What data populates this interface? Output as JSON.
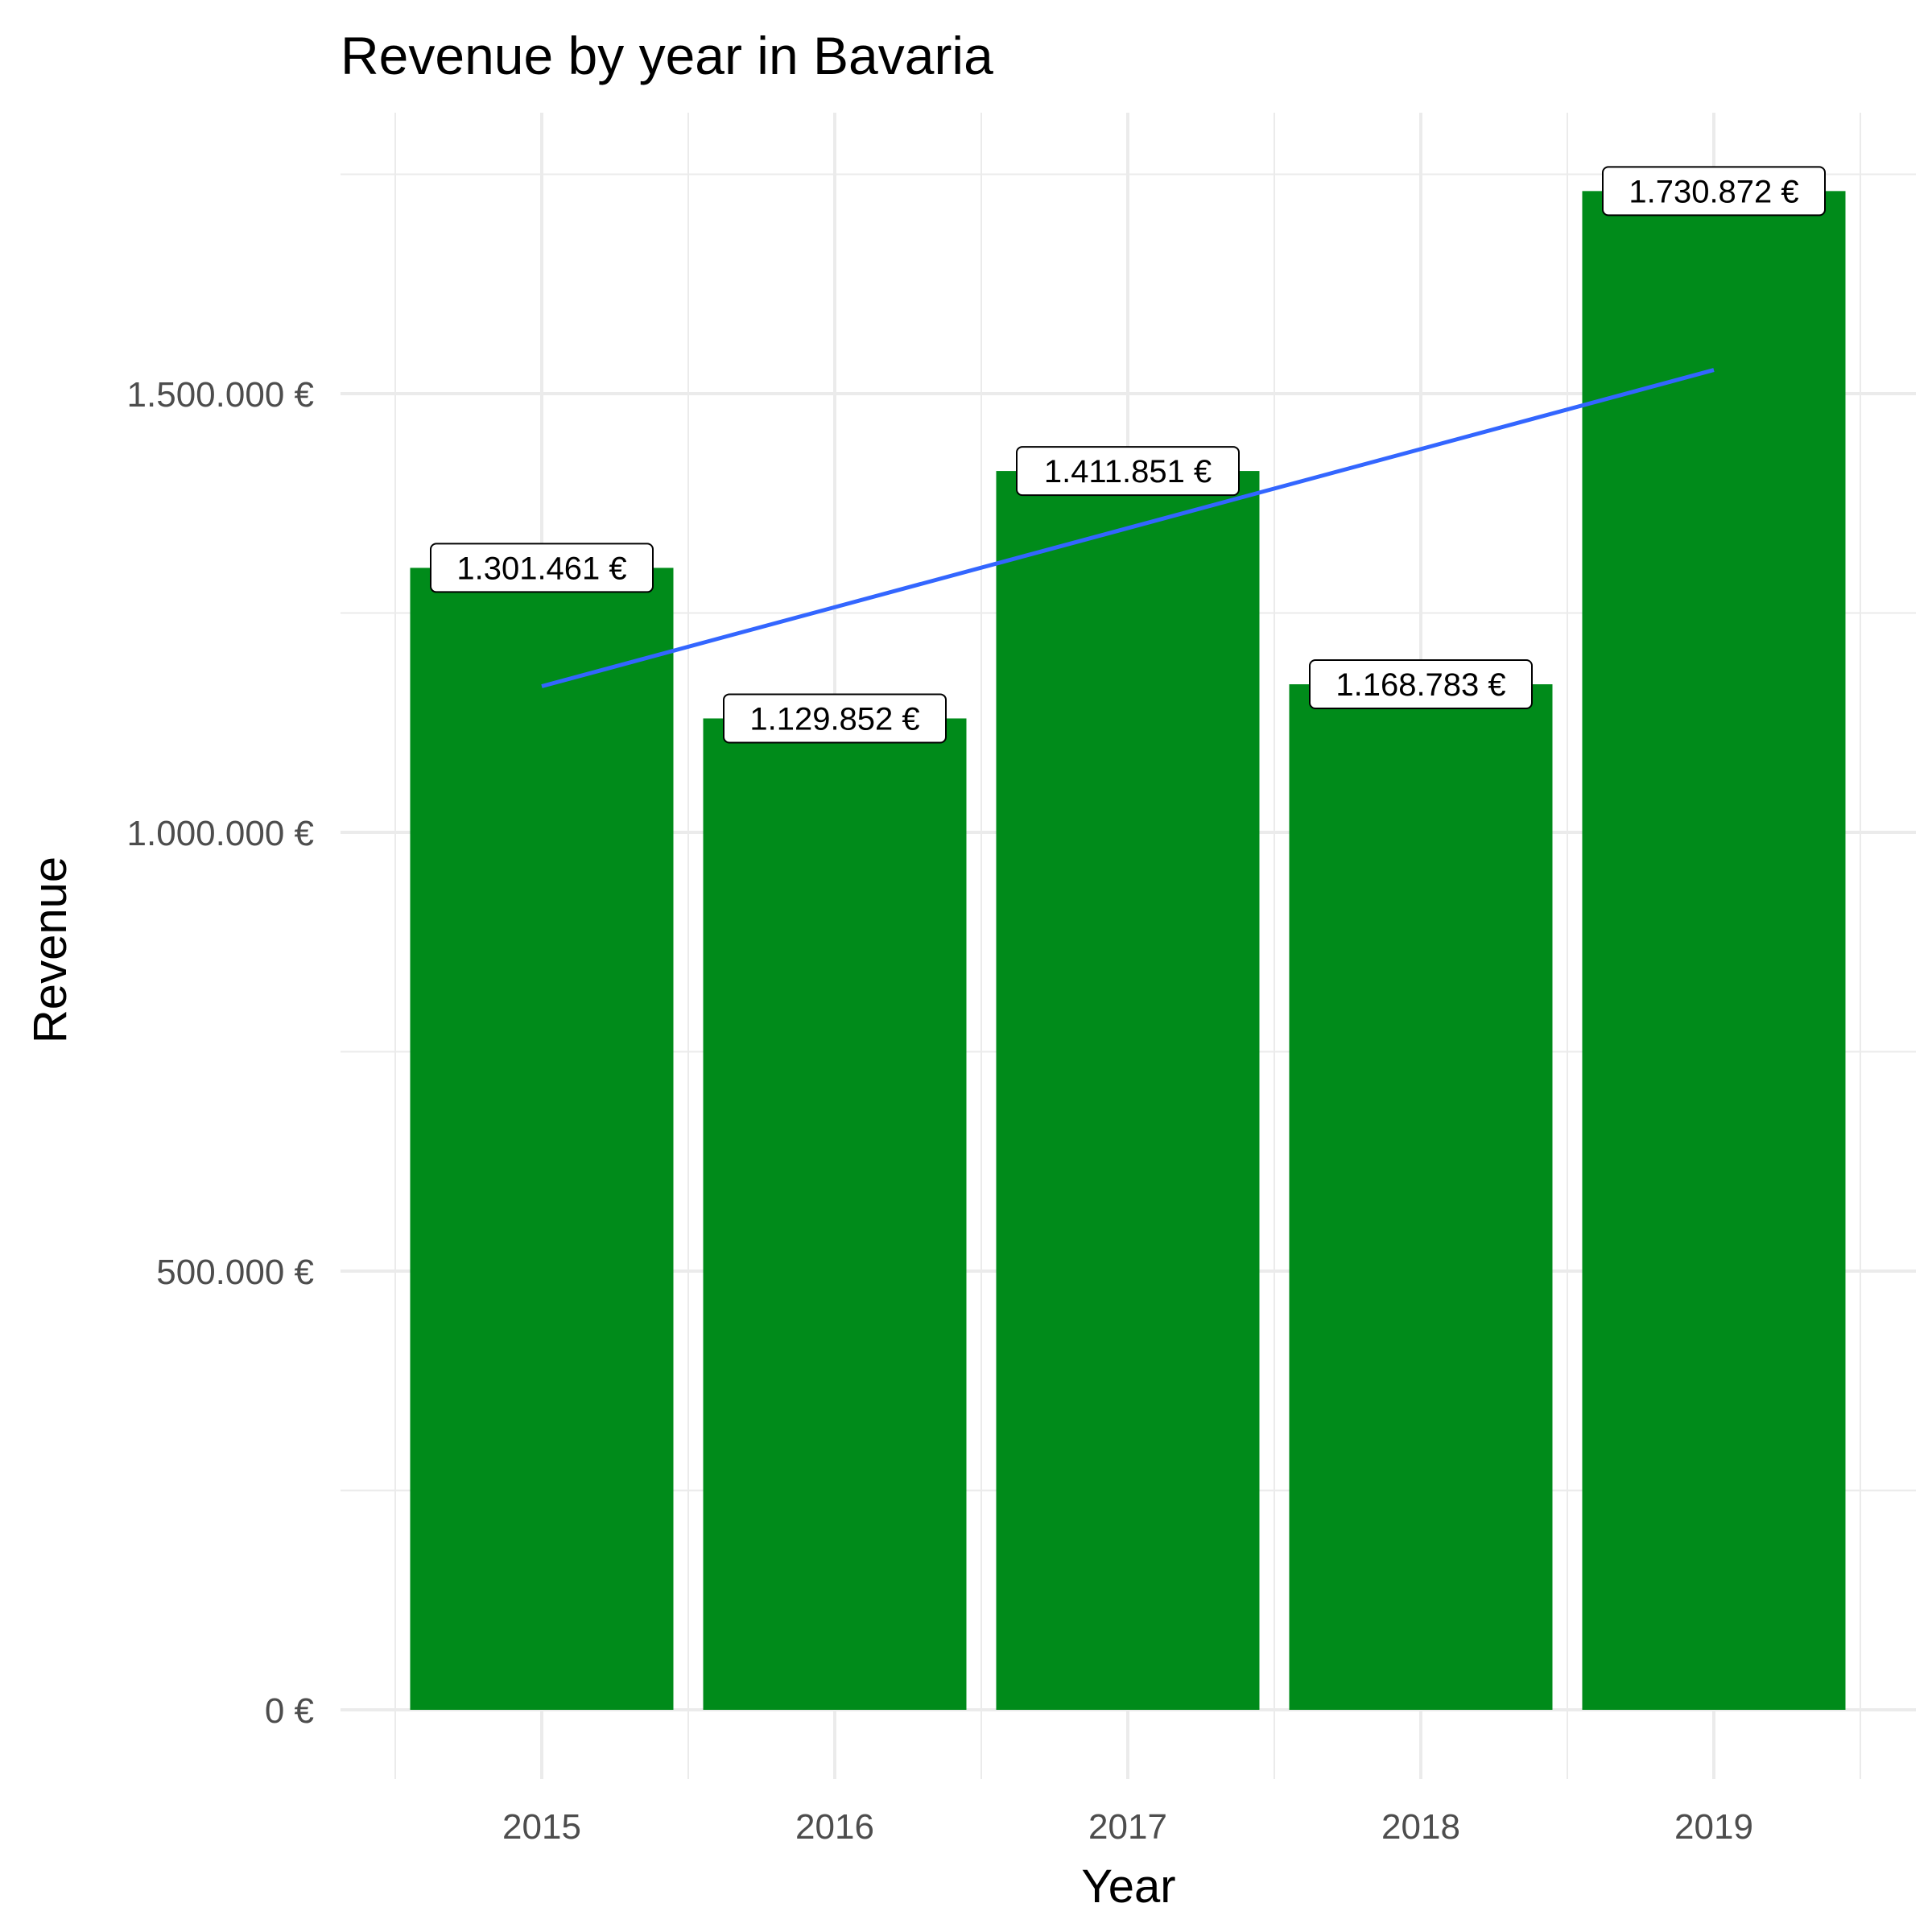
{
  "chart_data": {
    "type": "bar",
    "title": "Revenue by year in Bavaria",
    "xlabel": "Year",
    "ylabel": "Revenue",
    "categories": [
      "2015",
      "2016",
      "2017",
      "2018",
      "2019"
    ],
    "values": [
      1301461,
      1129852,
      1411851,
      1168783,
      1730872
    ],
    "data_labels": [
      "1.301.461 €",
      "1.129.852 €",
      "1.411.851 €",
      "1.168.783 €",
      "1.730.872 €"
    ],
    "ylim": [
      -170000,
      1830000
    ],
    "y_ticks": [
      0,
      500000,
      1000000,
      1500000
    ],
    "y_tick_labels": [
      "0 €",
      "500.000 €",
      "1.000.000 €",
      "1.500.000 €"
    ],
    "trend_line": {
      "type": "linear",
      "start": 1166500,
      "end": 1527000
    },
    "grid": true,
    "legend": "none",
    "colors": {
      "bar": "#008b1a",
      "trend": "#3366ff",
      "grid": "#ebebeb"
    }
  }
}
